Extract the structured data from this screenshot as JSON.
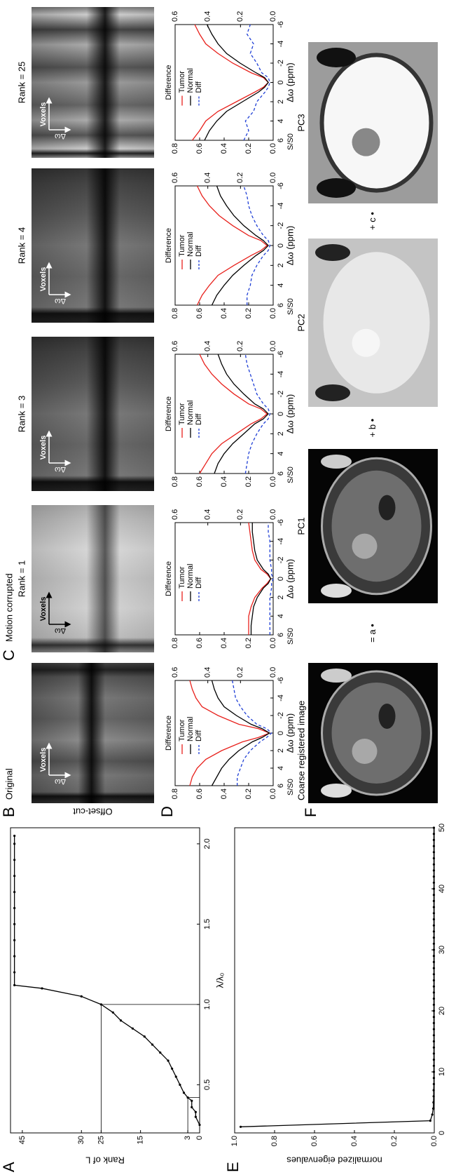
{
  "figure": {
    "labels": [
      "A",
      "B",
      "C",
      "D",
      "E",
      "F"
    ],
    "offset_label": "Offset-cut",
    "group_title": "Motion corrupted",
    "heatmaps": [
      {
        "title": "Original",
        "x_label": "Voxels",
        "y_label": "Δω"
      },
      {
        "title": "Rank = 1",
        "x_label": "Voxels",
        "y_label": "Δω"
      },
      {
        "title": "Rank = 3",
        "x_label": "Voxels",
        "y_label": "Δω"
      },
      {
        "title": "Rank = 4",
        "x_label": "Voxels",
        "y_label": "Δω"
      },
      {
        "title": "Rank = 25",
        "x_label": "Voxels",
        "y_label": "Δω"
      }
    ],
    "decomposition": {
      "images": [
        "Coarse registered image",
        "PC1",
        "PC2",
        "PC3"
      ],
      "operators": [
        "= a •",
        "+ b •",
        "+ c •"
      ]
    }
  },
  "chart_data": [
    {
      "type": "line",
      "ylabel": "Rank of L",
      "xlabel": "λ/λ₀",
      "markers": true,
      "color": "#000000",
      "x": [
        0.25,
        0.3,
        0.33,
        0.36,
        0.4,
        0.42,
        0.45,
        0.5,
        0.55,
        0.6,
        0.65,
        0.7,
        0.75,
        0.8,
        0.85,
        0.9,
        0.95,
        1.0,
        1.05,
        1.1,
        1.12,
        1.2,
        1.3,
        1.4,
        1.5,
        1.6,
        1.7,
        1.8,
        1.9,
        2.0,
        2.05
      ],
      "values": [
        0,
        1,
        1,
        2,
        2,
        3,
        4,
        5,
        6,
        7,
        8,
        10,
        12,
        14,
        17,
        20,
        22,
        25,
        30,
        40,
        47,
        47,
        47,
        47,
        47,
        47,
        47,
        47,
        47,
        47,
        47
      ],
      "guides": [
        {
          "x": 1.0,
          "y": 25
        },
        {
          "x": 0.42,
          "y": 3
        }
      ],
      "xlim": [
        0.2,
        2.1
      ],
      "xticks": [
        0.5,
        {
          "value": 1,
          "label": "1.0"
        },
        1.5,
        {
          "value": 2,
          "label": "2.0"
        }
      ],
      "ylim": [
        0,
        48
      ],
      "yticks": [
        0,
        3,
        15,
        25,
        30,
        45
      ]
    },
    {
      "type": "line",
      "ylabel": "normalized eigenvalues",
      "markers": true,
      "color": "#000000",
      "x": [
        1,
        2,
        3,
        4,
        5,
        6,
        7,
        8,
        9,
        10,
        11,
        12,
        13,
        14,
        15,
        16,
        17,
        18,
        19,
        20,
        21,
        22,
        23,
        24,
        25,
        26,
        27,
        28,
        29,
        30,
        31,
        32,
        33,
        34,
        35,
        36,
        37,
        38,
        39,
        40,
        41,
        42,
        43,
        44,
        45,
        46,
        47,
        48,
        49,
        50
      ],
      "values": [
        0.97,
        0.02,
        0.01,
        0.005,
        0.004,
        0.003,
        0.003,
        0.002,
        0.002,
        0.002,
        0.002,
        0.002,
        0.002,
        0.002,
        0.002,
        0.002,
        0.002,
        0.002,
        0.002,
        0.002,
        0.002,
        0.002,
        0.002,
        0.002,
        0.002,
        0.002,
        0.002,
        0.002,
        0.002,
        0.002,
        0.002,
        0.002,
        0.002,
        0.002,
        0.002,
        0.002,
        0.002,
        0.002,
        0.002,
        0.002,
        0.002,
        0.002,
        0.002,
        0.002,
        0.002,
        0.002,
        0.002,
        0.002,
        0.002,
        0.002
      ],
      "xlim": [
        0,
        50
      ],
      "xticks": [
        0,
        10,
        20,
        30,
        40,
        50
      ],
      "ylim": [
        0,
        1
      ],
      "yticks": [
        {
          "value": 0,
          "label": "0.0"
        },
        0.2,
        0.4,
        0.6,
        0.8,
        {
          "value": 1,
          "label": "1.0"
        }
      ]
    },
    {
      "type": "line",
      "ylabel": "S/S0",
      "y2label": "Difference",
      "xlabel": "Δω (ppm)",
      "legend": "upper left",
      "x": [
        6,
        5,
        4,
        3,
        2,
        1,
        0.5,
        0,
        -0.5,
        -1,
        -2,
        -3,
        -4,
        -5,
        -6
      ],
      "series": [
        {
          "name": "Tumor",
          "color": "#e8211c",
          "values": [
            0.68,
            0.66,
            0.62,
            0.55,
            0.42,
            0.25,
            0.12,
            0.03,
            0.12,
            0.28,
            0.45,
            0.58,
            0.63,
            0.66,
            0.68
          ]
        },
        {
          "name": "Normal",
          "color": "#000000",
          "values": [
            0.5,
            0.46,
            0.42,
            0.36,
            0.28,
            0.17,
            0.09,
            0.03,
            0.09,
            0.18,
            0.3,
            0.4,
            0.45,
            0.48,
            0.5
          ]
        },
        {
          "name": "Diff",
          "color": "#1f3fd6",
          "dashed": true,
          "axis": "y2",
          "values": [
            0.22,
            0.22,
            0.2,
            0.18,
            0.14,
            0.08,
            0.04,
            0.01,
            0.04,
            0.1,
            0.16,
            0.2,
            0.23,
            0.24,
            0.25
          ]
        }
      ],
      "xlim": [
        6,
        -6
      ],
      "xticks": [
        6,
        4,
        2,
        0,
        -2,
        -4,
        -6
      ],
      "ylim": [
        0,
        0.8
      ],
      "yticks": [
        {
          "value": 0,
          "label": "0.0"
        },
        0.2,
        0.4,
        0.6,
        0.8
      ],
      "y2lim": [
        0,
        0.6
      ],
      "y2ticks": [
        {
          "value": 0,
          "label": "0.0"
        },
        0.2,
        0.4,
        0.6
      ]
    },
    {
      "type": "line",
      "ylabel": "S/S0",
      "y2label": "Difference",
      "xlabel": "Δω (ppm)",
      "legend": "upper left",
      "x": [
        6,
        5,
        4,
        3,
        2,
        1,
        0.5,
        0,
        -0.5,
        -1,
        -2,
        -3,
        -4,
        -5,
        -6
      ],
      "series": [
        {
          "name": "Tumor",
          "color": "#e8211c",
          "values": [
            0.2,
            0.2,
            0.2,
            0.18,
            0.15,
            0.09,
            0.05,
            0.02,
            0.05,
            0.1,
            0.15,
            0.17,
            0.18,
            0.19,
            0.2
          ]
        },
        {
          "name": "Normal",
          "color": "#000000",
          "values": [
            0.18,
            0.18,
            0.17,
            0.16,
            0.13,
            0.08,
            0.04,
            0.02,
            0.04,
            0.08,
            0.13,
            0.15,
            0.16,
            0.17,
            0.17
          ]
        },
        {
          "name": "Diff",
          "color": "#1f3fd6",
          "dashed": true,
          "axis": "y2",
          "values": [
            0.02,
            0.02,
            0.02,
            0.02,
            0.02,
            0.01,
            0.01,
            0.0,
            0.01,
            0.01,
            0.02,
            0.02,
            0.02,
            0.03,
            0.03
          ]
        }
      ],
      "xlim": [
        6,
        -6
      ],
      "xticks": [
        6,
        4,
        2,
        0,
        -2,
        -4,
        -6
      ],
      "ylim": [
        0,
        0.8
      ],
      "yticks": [
        {
          "value": 0,
          "label": "0.0"
        },
        0.2,
        0.4,
        0.6,
        0.8
      ],
      "y2lim": [
        0,
        0.6
      ],
      "y2ticks": [
        {
          "value": 0,
          "label": "0.0"
        },
        0.2,
        0.4,
        0.6
      ]
    },
    {
      "type": "line",
      "ylabel": "S/S0",
      "y2label": "Difference",
      "xlabel": "Δω (ppm)",
      "legend": "upper left",
      "x": [
        6,
        5,
        4,
        3,
        2,
        1,
        0.5,
        0,
        -0.5,
        -1,
        -2,
        -3,
        -4,
        -5,
        -6
      ],
      "series": [
        {
          "name": "Tumor",
          "color": "#e8211c",
          "values": [
            0.6,
            0.55,
            0.5,
            0.42,
            0.3,
            0.18,
            0.1,
            0.05,
            0.1,
            0.2,
            0.32,
            0.42,
            0.5,
            0.56,
            0.6
          ]
        },
        {
          "name": "Normal",
          "color": "#000000",
          "values": [
            0.48,
            0.45,
            0.4,
            0.33,
            0.24,
            0.15,
            0.08,
            0.04,
            0.08,
            0.15,
            0.24,
            0.32,
            0.38,
            0.42,
            0.45
          ]
        },
        {
          "name": "Diff",
          "color": "#1f3fd6",
          "dashed": true,
          "axis": "y2",
          "values": [
            0.17,
            0.16,
            0.15,
            0.13,
            0.1,
            0.06,
            0.03,
            0.02,
            0.03,
            0.06,
            0.1,
            0.12,
            0.14,
            0.16,
            0.17
          ]
        }
      ],
      "xlim": [
        6,
        -6
      ],
      "xticks": [
        6,
        4,
        2,
        0,
        -2,
        -4,
        -6
      ],
      "ylim": [
        0,
        0.8
      ],
      "yticks": [
        {
          "value": 0,
          "label": "0.0"
        },
        0.2,
        0.4,
        0.6,
        0.8
      ],
      "y2lim": [
        0,
        0.6
      ],
      "y2ticks": [
        {
          "value": 0,
          "label": "0.0"
        },
        0.2,
        0.4,
        0.6
      ]
    },
    {
      "type": "line",
      "ylabel": "S/S0",
      "y2label": "Difference",
      "xlabel": "Δω (ppm)",
      "legend": "upper left",
      "x": [
        6,
        5,
        4,
        3,
        2,
        1,
        0.5,
        0,
        -0.5,
        -1,
        -2,
        -3,
        -4,
        -5,
        -6
      ],
      "series": [
        {
          "name": "Tumor",
          "color": "#e8211c",
          "values": [
            0.62,
            0.58,
            0.52,
            0.45,
            0.32,
            0.18,
            0.1,
            0.05,
            0.1,
            0.2,
            0.33,
            0.44,
            0.52,
            0.58,
            0.62
          ]
        },
        {
          "name": "Normal",
          "color": "#000000",
          "values": [
            0.5,
            0.46,
            0.4,
            0.33,
            0.24,
            0.14,
            0.08,
            0.04,
            0.08,
            0.14,
            0.24,
            0.32,
            0.38,
            0.43,
            0.46
          ]
        },
        {
          "name": "Diff",
          "color": "#1f3fd6",
          "dashed": true,
          "axis": "y2",
          "values": [
            0.16,
            0.16,
            0.14,
            0.13,
            0.1,
            0.06,
            0.03,
            0.02,
            0.03,
            0.06,
            0.1,
            0.13,
            0.15,
            0.16,
            0.18
          ]
        }
      ],
      "xlim": [
        6,
        -6
      ],
      "xticks": [
        6,
        4,
        2,
        0,
        -2,
        -4,
        -6
      ],
      "ylim": [
        0,
        0.8
      ],
      "yticks": [
        {
          "value": 0,
          "label": "0.0"
        },
        0.2,
        0.4,
        0.6,
        0.8
      ],
      "y2lim": [
        0,
        0.6
      ],
      "y2ticks": [
        {
          "value": 0,
          "label": "0.0"
        },
        0.2,
        0.4,
        0.6
      ]
    },
    {
      "type": "line",
      "ylabel": "S/S0",
      "y2label": "Difference",
      "xlabel": "Δω (ppm)",
      "legend": "upper left",
      "x": [
        6,
        5,
        4,
        3,
        2,
        1,
        0.5,
        0,
        -0.5,
        -1,
        -2,
        -3,
        -4,
        -5,
        -6
      ],
      "series": [
        {
          "name": "Tumor",
          "color": "#e8211c",
          "values": [
            0.66,
            0.6,
            0.55,
            0.45,
            0.3,
            0.15,
            0.08,
            0.04,
            0.08,
            0.18,
            0.33,
            0.45,
            0.55,
            0.6,
            0.64
          ]
        },
        {
          "name": "Normal",
          "color": "#000000",
          "values": [
            0.56,
            0.52,
            0.46,
            0.38,
            0.25,
            0.12,
            0.07,
            0.04,
            0.07,
            0.14,
            0.27,
            0.38,
            0.45,
            0.5,
            0.54
          ]
        },
        {
          "name": "Diff",
          "color": "#1f3fd6",
          "dashed": true,
          "axis": "y2",
          "values": [
            0.18,
            0.15,
            0.17,
            0.12,
            0.1,
            0.05,
            0.03,
            0.02,
            0.03,
            0.07,
            0.1,
            0.14,
            0.12,
            0.16,
            0.14
          ]
        }
      ],
      "xlim": [
        6,
        -6
      ],
      "xticks": [
        6,
        4,
        2,
        0,
        -2,
        -4,
        -6
      ],
      "ylim": [
        0,
        0.8
      ],
      "yticks": [
        {
          "value": 0,
          "label": "0.0"
        },
        0.2,
        0.4,
        0.6,
        0.8
      ],
      "y2lim": [
        0,
        0.6
      ],
      "y2ticks": [
        {
          "value": 0,
          "label": "0.0"
        },
        0.2,
        0.4,
        0.6
      ]
    }
  ]
}
